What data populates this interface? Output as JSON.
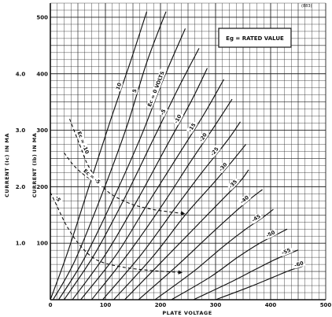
{
  "chart_data": {
    "type": "line",
    "corner_code": "(883)",
    "annotation": "Eg = RATED VALUE",
    "xlabel": "PLATE VOLTAGE",
    "ylabel_inner": "CURRENT (Ib) IN MA",
    "ylabel_outer": "CURRENT (Ic) IN MA",
    "xlim": [
      0,
      500
    ],
    "ylim_inner": [
      0,
      525
    ],
    "ylim_outer": [
      0,
      5.25
    ],
    "x_ticks": [
      "0",
      "100",
      "200",
      "300",
      "400",
      "500"
    ],
    "y_ticks_inner": [
      "100",
      "200",
      "300",
      "400",
      "500"
    ],
    "y_ticks_outer": [
      "1.0",
      "2.0",
      "3.0",
      "4.0"
    ],
    "plate_series": [
      {
        "name": "10",
        "points": [
          [
            0,
            0
          ],
          [
            30,
            80
          ],
          [
            70,
            200
          ],
          [
            110,
            320
          ],
          [
            145,
            420
          ],
          [
            175,
            510
          ]
        ]
      },
      {
        "name": "5",
        "points": [
          [
            5,
            0
          ],
          [
            45,
            70
          ],
          [
            95,
            190
          ],
          [
            140,
            310
          ],
          [
            175,
            420
          ],
          [
            210,
            510
          ]
        ]
      },
      {
        "name": "Ec = 0 VOLTS",
        "points": [
          [
            15,
            0
          ],
          [
            60,
            70
          ],
          [
            115,
            180
          ],
          [
            165,
            290
          ],
          [
            205,
            390
          ],
          [
            245,
            480
          ]
        ]
      },
      {
        "name": "-5",
        "points": [
          [
            25,
            0
          ],
          [
            80,
            80
          ],
          [
            135,
            180
          ],
          [
            185,
            280
          ],
          [
            230,
            370
          ],
          [
            270,
            445
          ]
        ]
      },
      {
        "name": "-10",
        "points": [
          [
            40,
            0
          ],
          [
            100,
            80
          ],
          [
            160,
            180
          ],
          [
            210,
            270
          ],
          [
            255,
            350
          ],
          [
            285,
            410
          ]
        ]
      },
      {
        "name": "-15",
        "points": [
          [
            55,
            0
          ],
          [
            120,
            80
          ],
          [
            180,
            175
          ],
          [
            235,
            260
          ],
          [
            280,
            330
          ],
          [
            315,
            390
          ]
        ]
      },
      {
        "name": "-20",
        "points": [
          [
            75,
            0
          ],
          [
            140,
            80
          ],
          [
            205,
            170
          ],
          [
            255,
            245
          ],
          [
            300,
            310
          ],
          [
            330,
            355
          ]
        ]
      },
      {
        "name": "-25",
        "points": [
          [
            95,
            0
          ],
          [
            165,
            80
          ],
          [
            225,
            160
          ],
          [
            275,
            225
          ],
          [
            320,
            280
          ],
          [
            345,
            315
          ]
        ]
      },
      {
        "name": "-30",
        "points": [
          [
            115,
            0
          ],
          [
            185,
            75
          ],
          [
            245,
            150
          ],
          [
            295,
            205
          ],
          [
            330,
            245
          ],
          [
            355,
            275
          ]
        ]
      },
      {
        "name": "-35",
        "points": [
          [
            135,
            0
          ],
          [
            205,
            70
          ],
          [
            265,
            130
          ],
          [
            315,
            180
          ],
          [
            345,
            210
          ],
          [
            360,
            230
          ]
        ]
      },
      {
        "name": "-40",
        "points": [
          [
            160,
            0
          ],
          [
            230,
            60
          ],
          [
            290,
            115
          ],
          [
            335,
            155
          ],
          [
            365,
            180
          ],
          [
            385,
            195
          ]
        ]
      },
      {
        "name": "-45",
        "points": [
          [
            190,
            0
          ],
          [
            260,
            50
          ],
          [
            315,
            95
          ],
          [
            355,
            125
          ],
          [
            385,
            145
          ],
          [
            405,
            160
          ]
        ]
      },
      {
        "name": "-50",
        "points": [
          [
            220,
            0
          ],
          [
            290,
            40
          ],
          [
            340,
            75
          ],
          [
            380,
            100
          ],
          [
            410,
            115
          ],
          [
            430,
            125
          ]
        ]
      },
      {
        "name": "-55",
        "points": [
          [
            260,
            0
          ],
          [
            325,
            30
          ],
          [
            375,
            55
          ],
          [
            410,
            72
          ],
          [
            435,
            82
          ],
          [
            450,
            88
          ]
        ]
      },
      {
        "name": "-60",
        "points": [
          [
            300,
            0
          ],
          [
            360,
            22
          ],
          [
            405,
            40
          ],
          [
            435,
            52
          ],
          [
            455,
            58
          ],
          [
            462,
            62
          ]
        ]
      }
    ],
    "screen_series": [
      {
        "name": "Ec = -10",
        "points": [
          [
            35,
            320
          ],
          [
            55,
            270
          ],
          [
            70,
            235
          ],
          [
            100,
            195
          ],
          [
            140,
            172
          ],
          [
            185,
            160
          ],
          [
            245,
            152
          ]
        ]
      },
      {
        "name": "Ec = -5",
        "points": [
          [
            25,
            260
          ],
          [
            45,
            235
          ],
          [
            70,
            215
          ],
          [
            90,
            208
          ]
        ]
      },
      {
        "name": "-5",
        "points": [
          [
            0,
            190
          ],
          [
            10,
            170
          ],
          [
            30,
            130
          ],
          [
            55,
            95
          ],
          [
            85,
            70
          ],
          [
            130,
            58
          ],
          [
            180,
            52
          ],
          [
            240,
            48
          ]
        ]
      }
    ],
    "curve_labels": [
      "10",
      "5",
      "Ec = 0 VOLTS",
      "-5",
      "-10",
      "-15",
      "-20",
      "-25",
      "-30",
      "-35",
      "-40",
      "-45",
      "-50",
      "-55",
      "-60",
      "Ec = -10",
      "-5",
      "-5"
    ]
  }
}
